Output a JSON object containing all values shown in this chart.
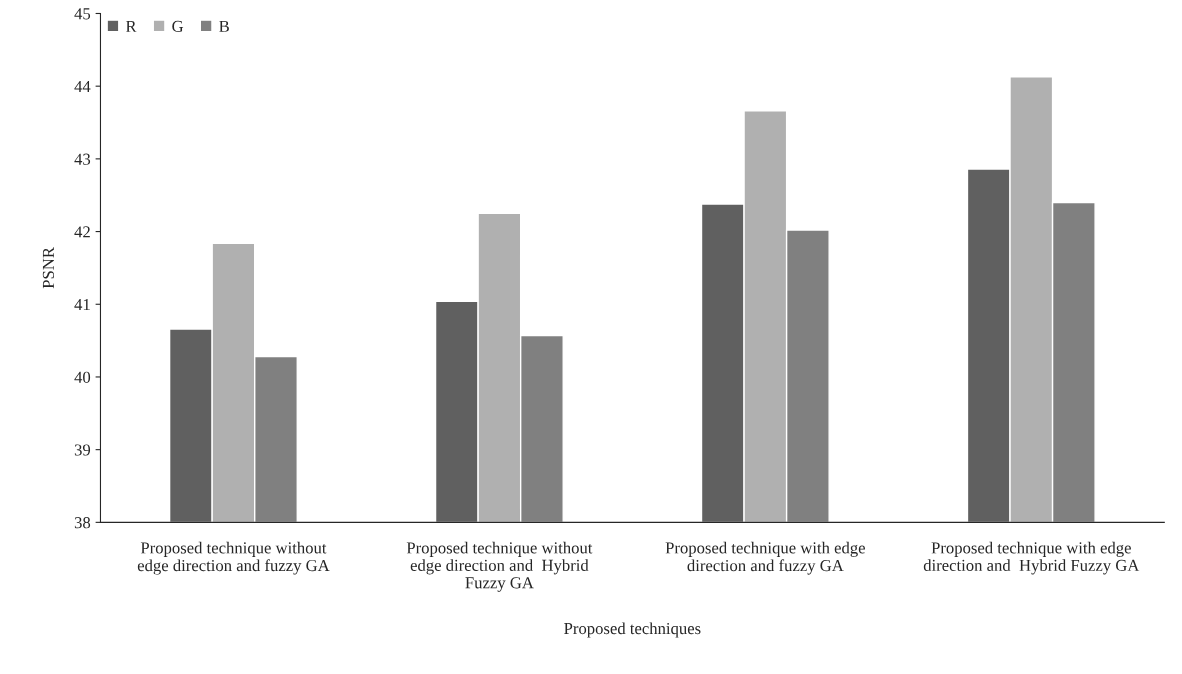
{
  "chart_data": {
    "type": "bar",
    "xlabel": "Proposed techniques",
    "ylabel": "PSNR",
    "categories": [
      "Proposed technique without\nedge direction and fuzzy GA",
      "Proposed technique without\nedge direction and  Hybrid\nFuzzy GA",
      "Proposed technique with edge\ndirection and fuzzy GA",
      "Proposed technique with edge\ndirection and  Hybrid Fuzzy GA"
    ],
    "series": [
      {
        "name": "R",
        "color": "#606060",
        "values": [
          40.66,
          41.04,
          42.38,
          42.86
        ]
      },
      {
        "name": "G",
        "color": "#b0b0b0",
        "values": [
          41.84,
          42.25,
          43.66,
          44.13
        ]
      },
      {
        "name": "B",
        "color": "#808080",
        "values": [
          40.28,
          40.57,
          42.02,
          42.4
        ]
      }
    ],
    "ylim": [
      38,
      45
    ],
    "yticks": [
      38,
      39,
      40,
      41,
      42,
      43,
      44,
      45
    ],
    "grid": false,
    "legend": "top left"
  }
}
